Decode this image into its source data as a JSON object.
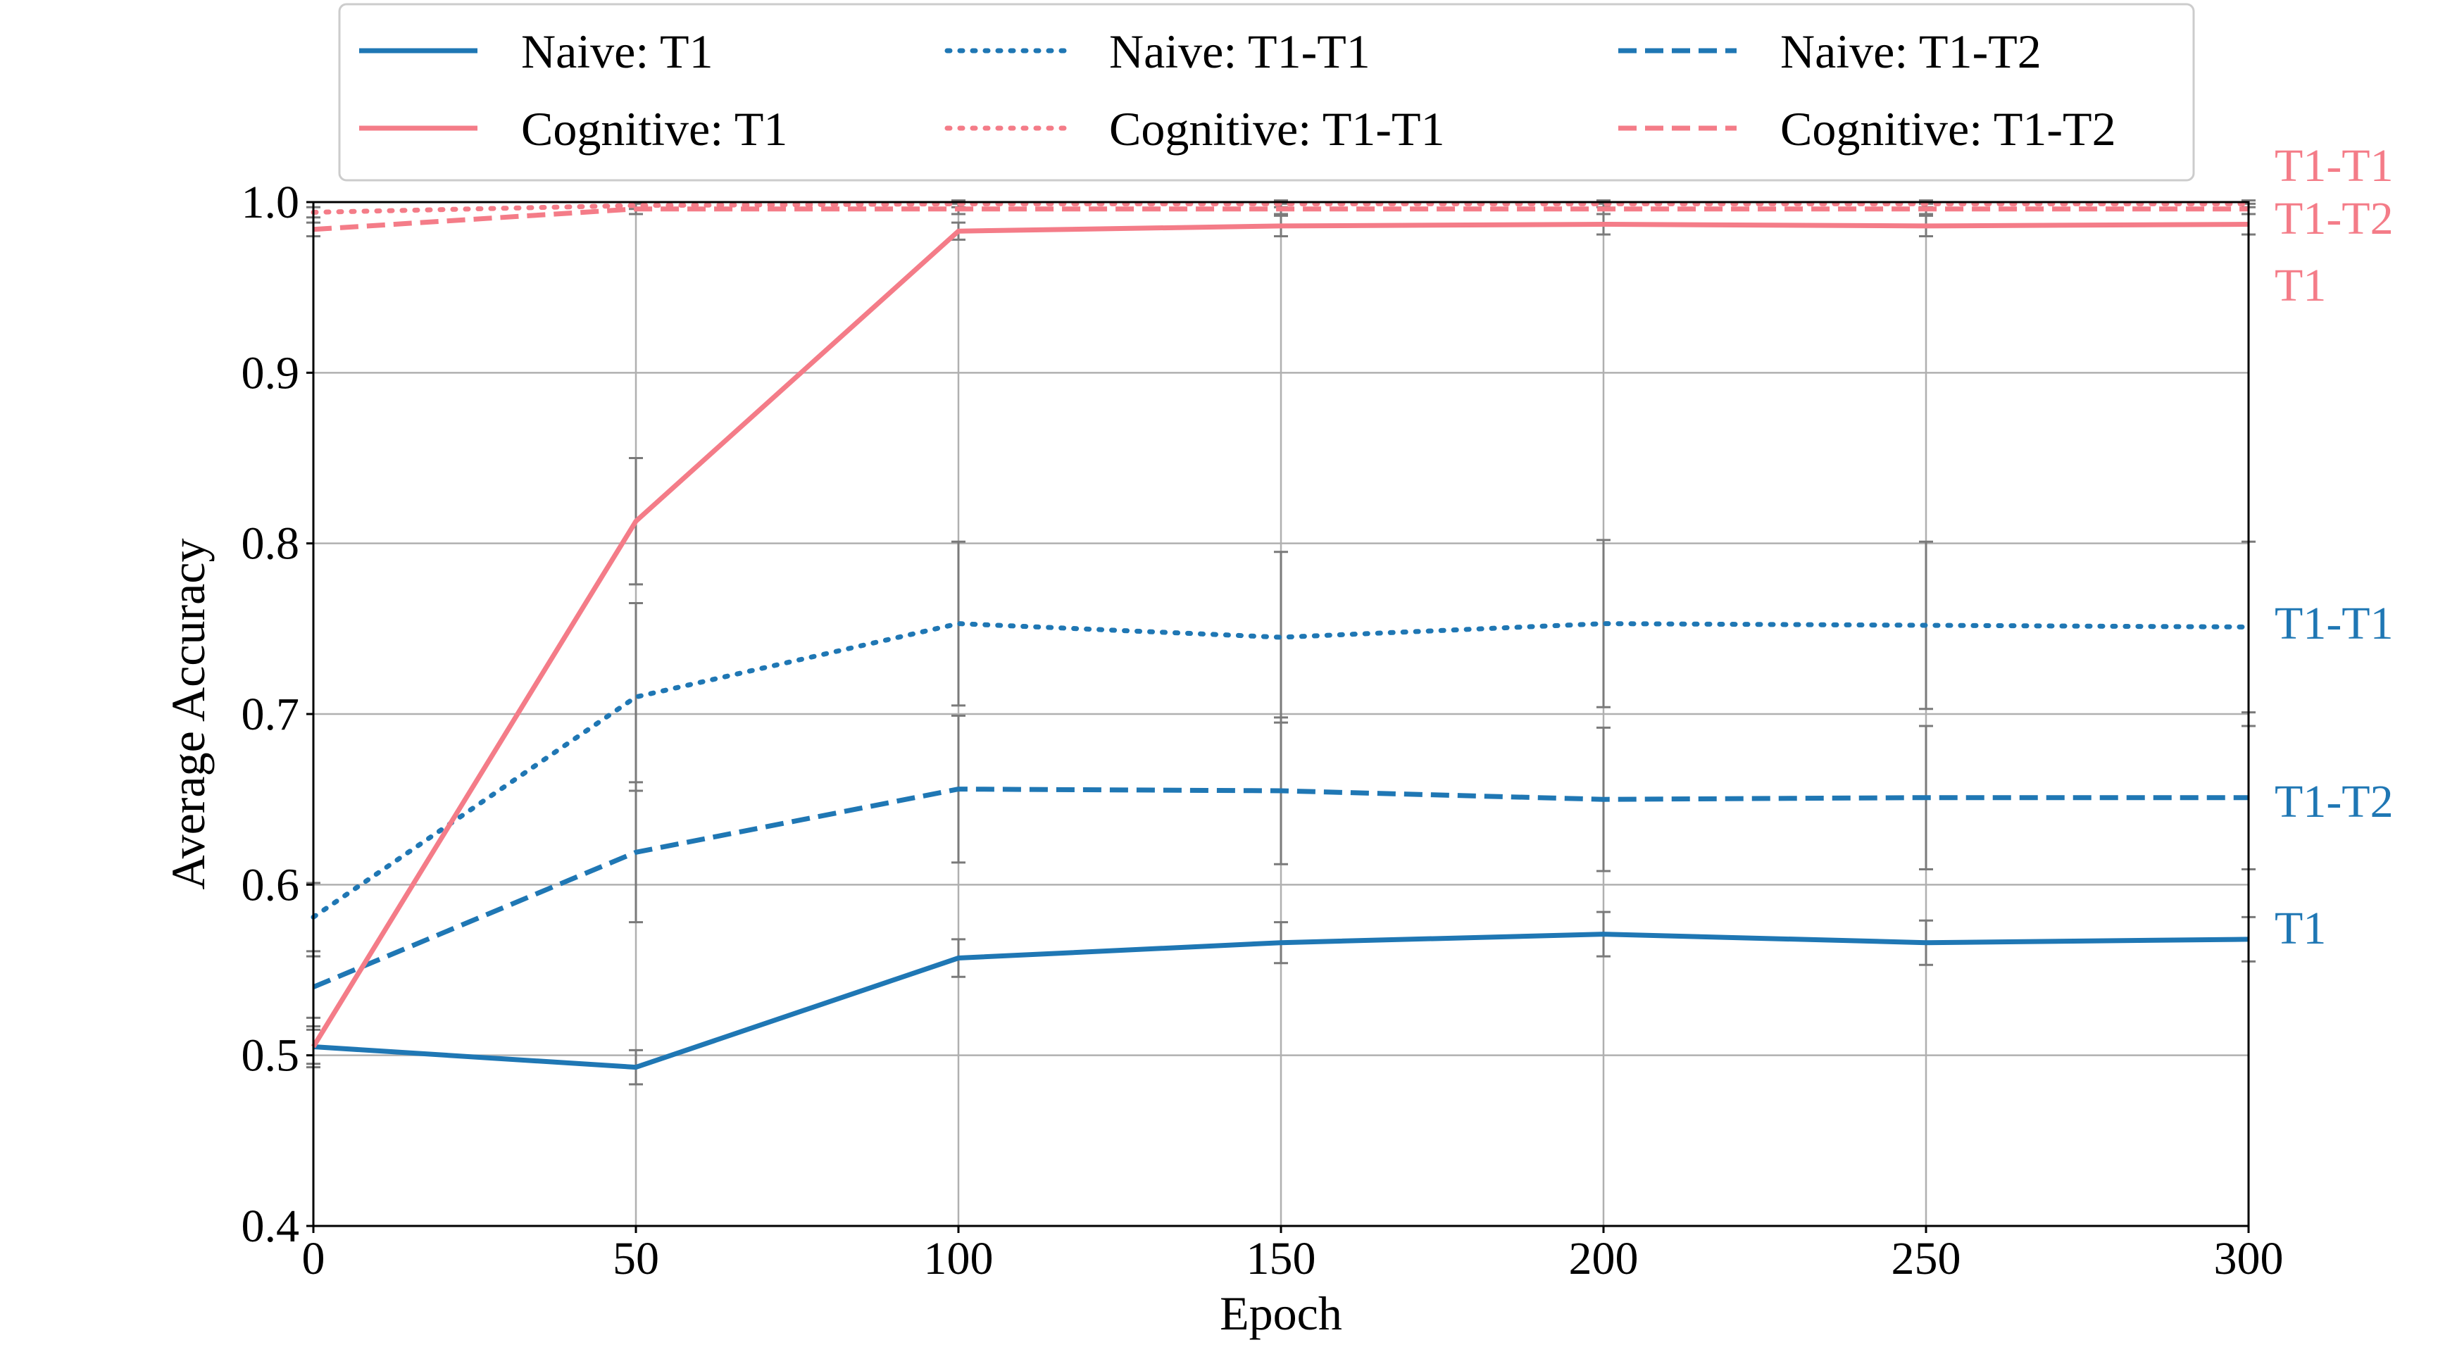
{
  "chart_data": {
    "type": "line",
    "title": "",
    "xlabel": "Epoch",
    "ylabel": "Average Accuracy",
    "xlim": [
      0,
      300
    ],
    "ylim": [
      0.4,
      1.0
    ],
    "grid": true,
    "x": [
      0,
      50,
      100,
      150,
      200,
      250,
      300
    ],
    "xticks": [
      "0",
      "50",
      "100",
      "150",
      "200",
      "250",
      "300"
    ],
    "yticks": [
      "0.4",
      "0.5",
      "0.6",
      "0.7",
      "0.8",
      "0.9",
      "1.0"
    ],
    "legend_position": "top",
    "colors": {
      "naive": "#1f77b4",
      "cognitive": "#f47c88",
      "errorbar": "#7a7a7a",
      "grid": "#b0b0b0"
    },
    "series": [
      {
        "name": "Naive: T1",
        "group": "naive",
        "style": "solid",
        "end_label": "T1",
        "values": [
          0.505,
          0.493,
          0.557,
          0.566,
          0.571,
          0.566,
          0.568
        ],
        "errors": [
          0.01,
          0.01,
          0.011,
          0.012,
          0.013,
          0.013,
          0.013
        ]
      },
      {
        "name": "Naive: T1-T1",
        "group": "naive",
        "style": "dotted",
        "end_label": "T1-T1",
        "values": [
          0.581,
          0.71,
          0.753,
          0.745,
          0.753,
          0.752,
          0.751
        ],
        "errors": [
          0.02,
          0.055,
          0.048,
          0.05,
          0.049,
          0.049,
          0.05
        ]
      },
      {
        "name": "Naive: T1-T2",
        "group": "naive",
        "style": "dashed",
        "end_label": "T1-T2",
        "values": [
          0.54,
          0.619,
          0.656,
          0.655,
          0.65,
          0.651,
          0.651
        ],
        "errors": [
          0.018,
          0.041,
          0.043,
          0.043,
          0.042,
          0.042,
          0.042
        ]
      },
      {
        "name": "Cognitive: T1",
        "group": "cognitive",
        "style": "solid",
        "end_label": "T1",
        "values": [
          0.505,
          0.813,
          0.983,
          0.986,
          0.987,
          0.986,
          0.987
        ],
        "errors": [
          0.012,
          0.037,
          0.005,
          0.006,
          0.006,
          0.006,
          0.006
        ]
      },
      {
        "name": "Cognitive: T1-T1",
        "group": "cognitive",
        "style": "dotted",
        "end_label": "T1-T1",
        "values": [
          0.994,
          0.998,
          0.999,
          0.999,
          0.999,
          0.999,
          0.999
        ],
        "errors": [
          0.003,
          0.002,
          0.002,
          0.002,
          0.002,
          0.002,
          0.002
        ]
      },
      {
        "name": "Cognitive: T1-T2",
        "group": "cognitive",
        "style": "dashed",
        "end_label": "T1-T2",
        "values": [
          0.984,
          0.996,
          0.996,
          0.996,
          0.996,
          0.996,
          0.996
        ],
        "errors": [
          0.004,
          0.003,
          0.003,
          0.003,
          0.003,
          0.003,
          0.003
        ]
      }
    ],
    "legend_order": [
      0,
      1,
      2,
      3,
      4,
      5
    ]
  }
}
